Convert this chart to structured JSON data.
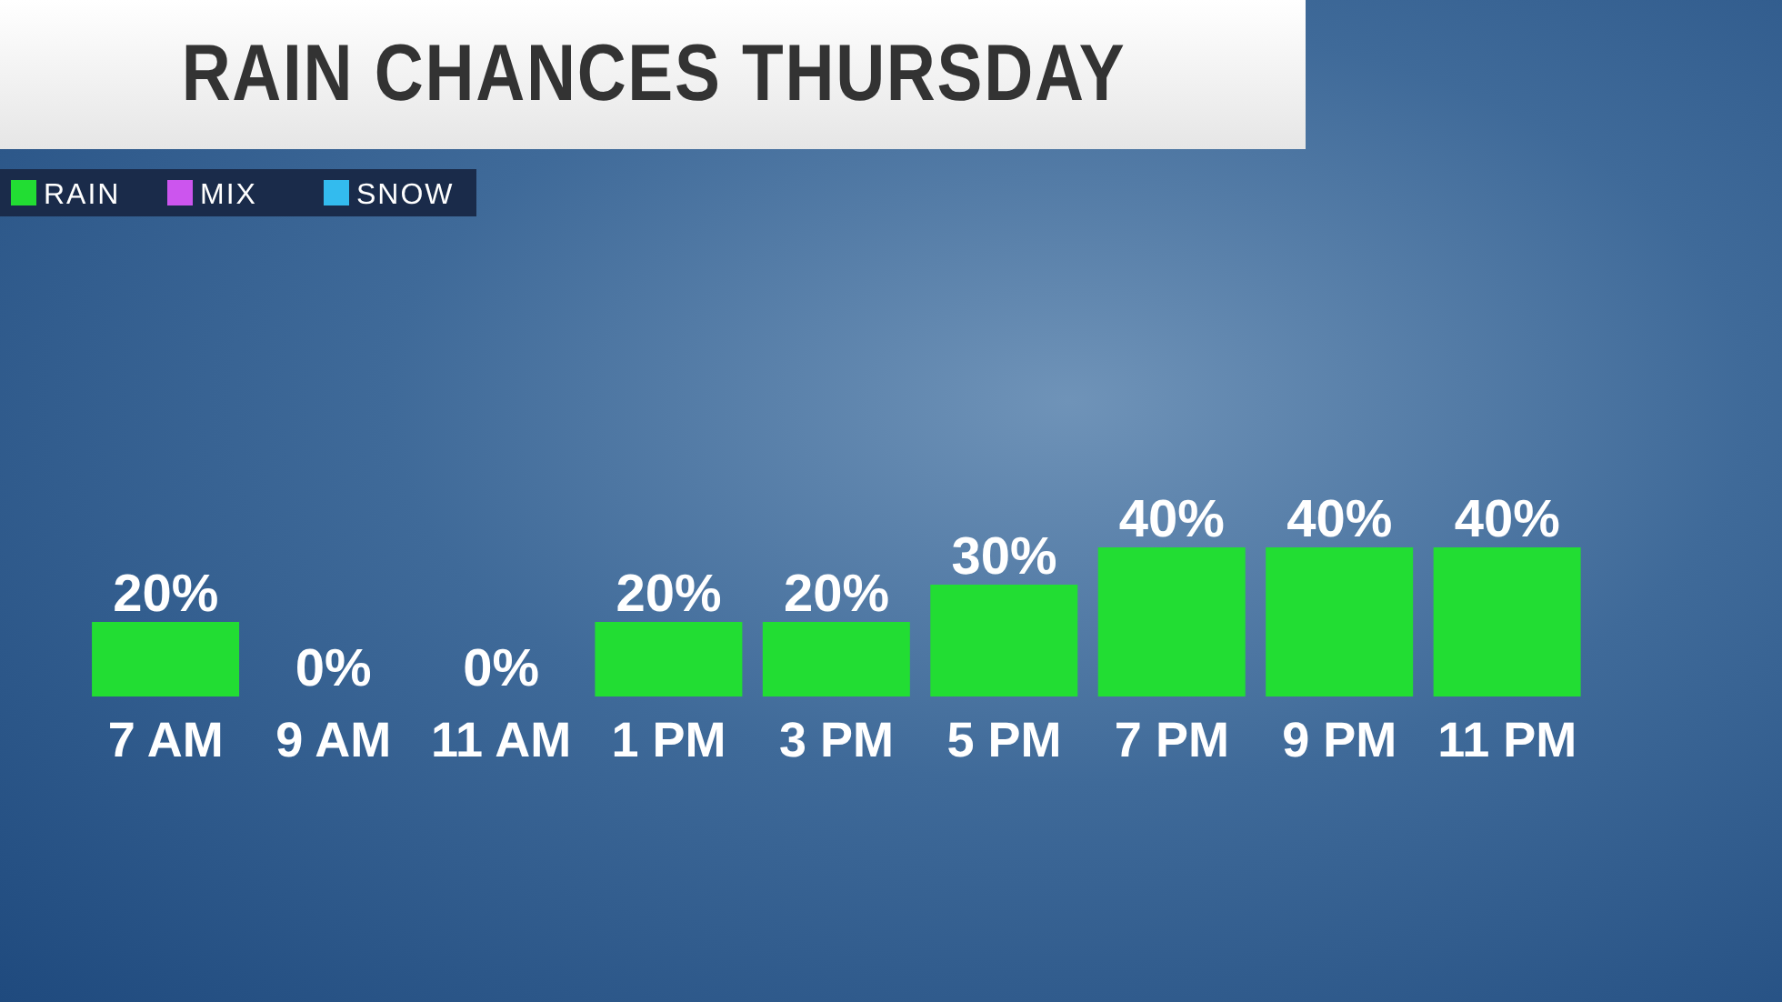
{
  "chart_data": {
    "type": "bar",
    "title": "RAIN CHANCES THURSDAY",
    "categories": [
      "7 AM",
      "9 AM",
      "11 AM",
      "1 PM",
      "3 PM",
      "5 PM",
      "7 PM",
      "9 PM",
      "11 PM"
    ],
    "series": [
      {
        "name": "RAIN",
        "color": "#22dd33",
        "values": [
          20,
          0,
          0,
          20,
          20,
          30,
          40,
          40,
          40
        ],
        "value_labels": [
          "20%",
          "0%",
          "0%",
          "20%",
          "20%",
          "30%",
          "40%",
          "40%",
          "40%"
        ]
      },
      {
        "name": "MIX",
        "color": "#cc55ee",
        "values": [
          null,
          null,
          null,
          null,
          null,
          null,
          null,
          null,
          null
        ]
      },
      {
        "name": "SNOW",
        "color": "#33bbee",
        "values": [
          null,
          null,
          null,
          null,
          null,
          null,
          null,
          null,
          null
        ]
      }
    ],
    "legend": "top left",
    "grid": false
  }
}
